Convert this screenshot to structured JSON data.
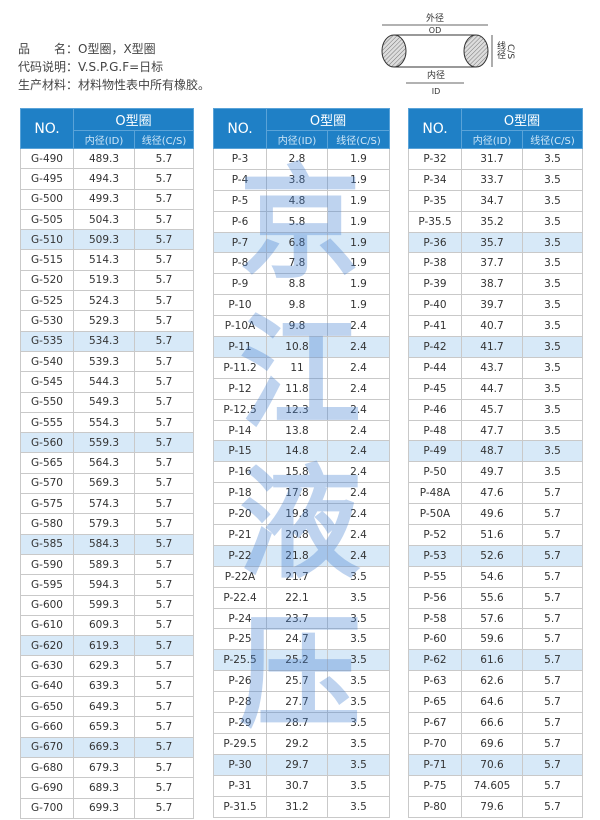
{
  "info": {
    "name_label": "品　　名：",
    "name_value": "O型圈，X型圈",
    "code_label": "代码说明：",
    "code_value": "V.S.P.G.F=日标",
    "material_label": "生产材料：",
    "material_value": "材料物性表中所有橡胶。"
  },
  "diagram": {
    "od_cn": "外径",
    "od": "OD",
    "id_cn": "内径",
    "id": "ID",
    "cs_cn": "线径",
    "cs": "C/S"
  },
  "watermark": "京江液压",
  "colors": {
    "header": "#1f80c6",
    "highlight": "#d7e9f8"
  },
  "headers": {
    "no": "NO.",
    "group": "O型圈",
    "id": "内径(ID)",
    "cs": "线径(C/S)"
  },
  "highlighted_rows": [
    4,
    9,
    14,
    19,
    24,
    29
  ],
  "tables": [
    [
      [
        "G-490",
        "489.3",
        "5.7"
      ],
      [
        "G-495",
        "494.3",
        "5.7"
      ],
      [
        "G-500",
        "499.3",
        "5.7"
      ],
      [
        "G-505",
        "504.3",
        "5.7"
      ],
      [
        "G-510",
        "509.3",
        "5.7"
      ],
      [
        "G-515",
        "514.3",
        "5.7"
      ],
      [
        "G-520",
        "519.3",
        "5.7"
      ],
      [
        "G-525",
        "524.3",
        "5.7"
      ],
      [
        "G-530",
        "529.3",
        "5.7"
      ],
      [
        "G-535",
        "534.3",
        "5.7"
      ],
      [
        "G-540",
        "539.3",
        "5.7"
      ],
      [
        "G-545",
        "544.3",
        "5.7"
      ],
      [
        "G-550",
        "549.3",
        "5.7"
      ],
      [
        "G-555",
        "554.3",
        "5.7"
      ],
      [
        "G-560",
        "559.3",
        "5.7"
      ],
      [
        "G-565",
        "564.3",
        "5.7"
      ],
      [
        "G-570",
        "569.3",
        "5.7"
      ],
      [
        "G-575",
        "574.3",
        "5.7"
      ],
      [
        "G-580",
        "579.3",
        "5.7"
      ],
      [
        "G-585",
        "584.3",
        "5.7"
      ],
      [
        "G-590",
        "589.3",
        "5.7"
      ],
      [
        "G-595",
        "594.3",
        "5.7"
      ],
      [
        "G-600",
        "599.3",
        "5.7"
      ],
      [
        "G-610",
        "609.3",
        "5.7"
      ],
      [
        "G-620",
        "619.3",
        "5.7"
      ],
      [
        "G-630",
        "629.3",
        "5.7"
      ],
      [
        "G-640",
        "639.3",
        "5.7"
      ],
      [
        "G-650",
        "649.3",
        "5.7"
      ],
      [
        "G-660",
        "659.3",
        "5.7"
      ],
      [
        "G-670",
        "669.3",
        "5.7"
      ],
      [
        "G-680",
        "679.3",
        "5.7"
      ],
      [
        "G-690",
        "689.3",
        "5.7"
      ],
      [
        "G-700",
        "699.3",
        "5.7"
      ]
    ],
    [
      [
        "P-3",
        "2.8",
        "1.9"
      ],
      [
        "P-4",
        "3.8",
        "1.9"
      ],
      [
        "P-5",
        "4.8",
        "1.9"
      ],
      [
        "P-6",
        "5.8",
        "1.9"
      ],
      [
        "P-7",
        "6.8",
        "1.9"
      ],
      [
        "P-8",
        "7.8",
        "1.9"
      ],
      [
        "P-9",
        "8.8",
        "1.9"
      ],
      [
        "P-10",
        "9.8",
        "1.9"
      ],
      [
        "P-10A",
        "9.8",
        "2.4"
      ],
      [
        "P-11",
        "10.8",
        "2.4"
      ],
      [
        "P-11.2",
        "11",
        "2.4"
      ],
      [
        "P-12",
        "11.8",
        "2.4"
      ],
      [
        "P-12.5",
        "12.3",
        "2.4"
      ],
      [
        "P-14",
        "13.8",
        "2.4"
      ],
      [
        "P-15",
        "14.8",
        "2.4"
      ],
      [
        "P-16",
        "15.8",
        "2.4"
      ],
      [
        "P-18",
        "17.8",
        "2.4"
      ],
      [
        "P-20",
        "19.8",
        "2.4"
      ],
      [
        "P-21",
        "20.8",
        "2.4"
      ],
      [
        "P-22",
        "21.8",
        "2.4"
      ],
      [
        "P-22A",
        "21.7",
        "3.5"
      ],
      [
        "P-22.4",
        "22.1",
        "3.5"
      ],
      [
        "P-24",
        "23.7",
        "3.5"
      ],
      [
        "P-25",
        "24.7",
        "3.5"
      ],
      [
        "P-25.5",
        "25.2",
        "3.5"
      ],
      [
        "P-26",
        "25.7",
        "3.5"
      ],
      [
        "P-28",
        "27.7",
        "3.5"
      ],
      [
        "P-29",
        "28.7",
        "3.5"
      ],
      [
        "P-29.5",
        "29.2",
        "3.5"
      ],
      [
        "P-30",
        "29.7",
        "3.5"
      ],
      [
        "P-31",
        "30.7",
        "3.5"
      ],
      [
        "P-31.5",
        "31.2",
        "3.5"
      ]
    ],
    [
      [
        "P-32",
        "31.7",
        "3.5"
      ],
      [
        "P-34",
        "33.7",
        "3.5"
      ],
      [
        "P-35",
        "34.7",
        "3.5"
      ],
      [
        "P-35.5",
        "35.2",
        "3.5"
      ],
      [
        "P-36",
        "35.7",
        "3.5"
      ],
      [
        "P-38",
        "37.7",
        "3.5"
      ],
      [
        "P-39",
        "38.7",
        "3.5"
      ],
      [
        "P-40",
        "39.7",
        "3.5"
      ],
      [
        "P-41",
        "40.7",
        "3.5"
      ],
      [
        "P-42",
        "41.7",
        "3.5"
      ],
      [
        "P-44",
        "43.7",
        "3.5"
      ],
      [
        "P-45",
        "44.7",
        "3.5"
      ],
      [
        "P-46",
        "45.7",
        "3.5"
      ],
      [
        "P-48",
        "47.7",
        "3.5"
      ],
      [
        "P-49",
        "48.7",
        "3.5"
      ],
      [
        "P-50",
        "49.7",
        "3.5"
      ],
      [
        "P-48A",
        "47.6",
        "5.7"
      ],
      [
        "P-50A",
        "49.6",
        "5.7"
      ],
      [
        "P-52",
        "51.6",
        "5.7"
      ],
      [
        "P-53",
        "52.6",
        "5.7"
      ],
      [
        "P-55",
        "54.6",
        "5.7"
      ],
      [
        "P-56",
        "55.6",
        "5.7"
      ],
      [
        "P-58",
        "57.6",
        "5.7"
      ],
      [
        "P-60",
        "59.6",
        "5.7"
      ],
      [
        "P-62",
        "61.6",
        "5.7"
      ],
      [
        "P-63",
        "62.6",
        "5.7"
      ],
      [
        "P-65",
        "64.6",
        "5.7"
      ],
      [
        "P-67",
        "66.6",
        "5.7"
      ],
      [
        "P-70",
        "69.6",
        "5.7"
      ],
      [
        "P-71",
        "70.6",
        "5.7"
      ],
      [
        "P-75",
        "74.605",
        "5.7"
      ],
      [
        "P-80",
        "79.6",
        "5.7"
      ]
    ]
  ]
}
